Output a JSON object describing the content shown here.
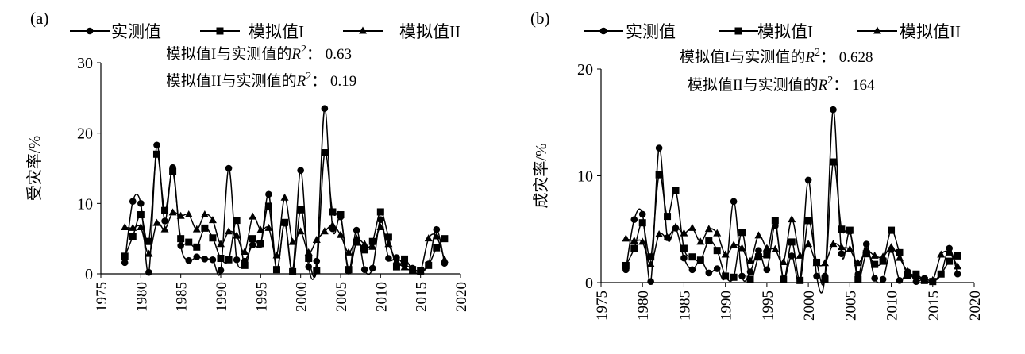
{
  "figure": {
    "panels": [
      {
        "label": "(a)",
        "ylabel": "受灾率/%",
        "annotations": [
          {
            "prefix": "模拟值I与实测值的",
            "var": "R",
            "sup": "2",
            "suffix": "：  0.63"
          },
          {
            "prefix": "模拟值II与实测值的",
            "var": "R",
            "sup": "2",
            "suffix": "：  0.19"
          }
        ]
      },
      {
        "label": "(b)",
        "ylabel": "成灾率/%",
        "annotations": [
          {
            "prefix": "模拟值I与实测值的",
            "var": "R",
            "sup": "2",
            "suffix": "：  0.628"
          },
          {
            "prefix": "模拟值II与实测值的",
            "var": "R",
            "sup": "2",
            "suffix": "：  164"
          }
        ]
      }
    ]
  },
  "chart_data": [
    {
      "type": "line",
      "title": "",
      "xlabel": "",
      "ylabel": "受灾率/%",
      "xlim": [
        1975,
        2020
      ],
      "ylim": [
        0,
        30
      ],
      "xticks": [
        1975,
        1980,
        1985,
        1990,
        1995,
        2000,
        2005,
        2010,
        2015,
        2020
      ],
      "yticks": [
        0,
        10,
        20,
        30
      ],
      "grid": false,
      "legend": "top",
      "x": [
        1978,
        1979,
        1980,
        1981,
        1982,
        1983,
        1984,
        1985,
        1986,
        1987,
        1988,
        1989,
        1990,
        1991,
        1992,
        1993,
        1994,
        1995,
        1996,
        1997,
        1998,
        1999,
        2000,
        2001,
        2002,
        2003,
        2004,
        2005,
        2006,
        2007,
        2008,
        2009,
        2010,
        2011,
        2012,
        2013,
        2014,
        2015,
        2016,
        2017,
        2018
      ],
      "series": [
        {
          "name": "实测值",
          "marker": "circle",
          "values": [
            1.6,
            10.3,
            10.0,
            0.2,
            18.3,
            7.5,
            15.1,
            4.0,
            1.9,
            2.4,
            2.1,
            2.0,
            0.5,
            15.0,
            2.0,
            1.8,
            4.1,
            4.2,
            11.3,
            0.6,
            7.2,
            0.4,
            14.7,
            1.0,
            1.8,
            23.5,
            6.4,
            8.1,
            0.4,
            6.2,
            0.6,
            0.8,
            7.7,
            2.2,
            2.3,
            1.3,
            0.8,
            0.3,
            1.4,
            6.3,
            1.5
          ]
        },
        {
          "name": "模拟值I",
          "marker": "square",
          "values": [
            2.5,
            5.3,
            8.4,
            4.6,
            17.0,
            9.0,
            14.5,
            5.0,
            4.5,
            3.8,
            6.5,
            5.1,
            2.2,
            2.0,
            7.6,
            1.2,
            5.0,
            4.3,
            9.6,
            0.6,
            7.3,
            0.3,
            9.1,
            2.2,
            0.5,
            17.2,
            8.8,
            8.4,
            0.6,
            4.5,
            3.4,
            4.6,
            8.8,
            5.2,
            1.0,
            2.1,
            0.6,
            0.4,
            1.2,
            3.7,
            5.0
          ]
        },
        {
          "name": "模拟值II",
          "marker": "triangle",
          "values": [
            6.6,
            6.5,
            6.6,
            2.8,
            7.2,
            6.3,
            8.7,
            8.2,
            8.4,
            6.3,
            8.4,
            7.6,
            4.2,
            6.0,
            5.4,
            3.1,
            8.1,
            6.2,
            6.5,
            2.6,
            10.8,
            4.5,
            6.0,
            3.0,
            4.8,
            6.0,
            6.9,
            5.5,
            3.0,
            5.0,
            4.2,
            3.8,
            6.6,
            4.2,
            1.8,
            0.9,
            0.4,
            0.4,
            5.0,
            5.3,
            2.0
          ]
        }
      ]
    },
    {
      "type": "line",
      "title": "",
      "xlabel": "",
      "ylabel": "成灾率/%",
      "xlim": [
        1975,
        2020
      ],
      "ylim": [
        0,
        20
      ],
      "xticks": [
        1975,
        1980,
        1985,
        1990,
        1995,
        2000,
        2005,
        2010,
        2015,
        2020
      ],
      "yticks": [
        0,
        10,
        20
      ],
      "grid": false,
      "legend": "top",
      "x": [
        1978,
        1979,
        1980,
        1981,
        1982,
        1983,
        1984,
        1985,
        1986,
        1987,
        1988,
        1989,
        1990,
        1991,
        1992,
        1993,
        1994,
        1995,
        1996,
        1997,
        1998,
        1999,
        2000,
        2001,
        2002,
        2003,
        2004,
        2005,
        2006,
        2007,
        2008,
        2009,
        2010,
        2011,
        2012,
        2013,
        2014,
        2015,
        2016,
        2017,
        2018
      ],
      "series": [
        {
          "name": "实测值",
          "marker": "circle",
          "values": [
            1.2,
            5.9,
            6.4,
            0.1,
            12.6,
            4.2,
            5.1,
            2.3,
            1.2,
            2.1,
            0.9,
            1.3,
            0.6,
            7.6,
            0.6,
            1.0,
            3.0,
            1.2,
            5.3,
            0.4,
            2.5,
            0.2,
            9.6,
            0.6,
            0.6,
            16.2,
            2.7,
            4.8,
            0.8,
            3.6,
            0.4,
            0.3,
            3.1,
            0.2,
            1.0,
            0.1,
            0.4,
            0.1,
            0.8,
            3.2,
            0.8
          ]
        },
        {
          "name": "模拟值I",
          "marker": "square",
          "values": [
            1.6,
            3.2,
            5.6,
            2.4,
            10.1,
            6.2,
            8.6,
            3.2,
            2.4,
            2.1,
            3.9,
            3.0,
            0.6,
            0.5,
            4.7,
            0.3,
            2.4,
            2.6,
            5.8,
            0.3,
            3.8,
            0.2,
            5.8,
            1.9,
            0.3,
            11.3,
            5.0,
            4.9,
            0.3,
            2.7,
            1.7,
            2.0,
            4.9,
            2.8,
            0.7,
            0.8,
            0.2,
            0.1,
            0.8,
            2.0,
            2.5
          ]
        },
        {
          "name": "模拟值II",
          "marker": "triangle",
          "values": [
            4.1,
            3.9,
            3.8,
            1.7,
            4.5,
            4.2,
            5.2,
            4.6,
            5.1,
            3.8,
            5.0,
            4.6,
            2.6,
            3.5,
            3.2,
            2.0,
            4.4,
            3.2,
            3.1,
            1.9,
            5.9,
            2.5,
            3.6,
            1.8,
            1.8,
            3.6,
            3.3,
            3.1,
            1.8,
            3.0,
            2.5,
            2.4,
            3.3,
            2.3,
            1.0,
            0.6,
            0.2,
            0.2,
            2.6,
            2.8,
            1.5
          ]
        }
      ]
    }
  ]
}
